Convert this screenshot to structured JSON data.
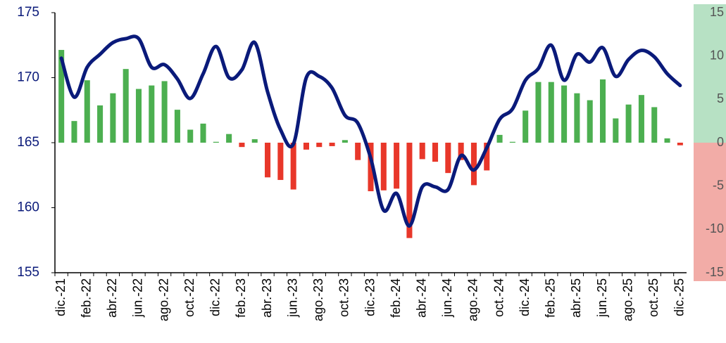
{
  "chart_data": {
    "type": "bar-line",
    "categories": [
      "dic.-21",
      null,
      "feb.-22",
      null,
      "abr.-22",
      null,
      "jun.-22",
      null,
      "ago.-22",
      null,
      "oct.-22",
      null,
      "dic.-22",
      null,
      "feb.-23",
      null,
      "abr.-23",
      null,
      "jun.-23",
      null,
      "ago.-23",
      null,
      "oct.-23",
      null,
      "dic.-23",
      null,
      "feb.-24",
      null,
      "abr.-24",
      null,
      "jun.-24",
      null,
      "ago.-24",
      null,
      "oct.-24",
      null,
      "dic.-24",
      null,
      "feb.-25",
      null,
      "abr.-25",
      null,
      "jun.-25",
      null,
      "ago.-25",
      null,
      "oct.-25",
      null,
      "dic.-25"
    ],
    "series": [
      {
        "type": "bar",
        "axis": "y2",
        "colors": {
          "positive": "#4caf50",
          "negative": "#e8372a"
        },
        "values": [
          10.7,
          2.5,
          7.2,
          4.3,
          5.7,
          8.5,
          6.2,
          6.6,
          7.1,
          3.8,
          1.5,
          2.2,
          0.1,
          1.0,
          -0.5,
          0.4,
          -4.0,
          -4.3,
          -5.4,
          -0.8,
          -0.5,
          -0.4,
          0.3,
          -2.0,
          -5.6,
          -5.5,
          -5.3,
          -11.0,
          -1.9,
          -2.2,
          -3.5,
          -2.0,
          -4.9,
          -3.2,
          0.9,
          0.1,
          3.7,
          7.0,
          7.0,
          6.6,
          5.7,
          4.9,
          7.3,
          2.8,
          4.4,
          5.5,
          4.1,
          0.5,
          -0.3
        ]
      },
      {
        "type": "line",
        "axis": "y",
        "color": "#0a1a7a",
        "values": [
          171.5,
          168.5,
          170.8,
          171.8,
          172.7,
          173.0,
          173.0,
          170.8,
          171.0,
          169.9,
          168.4,
          170.3,
          172.4,
          170.0,
          170.6,
          172.7,
          168.9,
          166.0,
          164.9,
          170.0,
          170.1,
          169.2,
          167.1,
          166.5,
          163.8,
          159.8,
          161.1,
          158.6,
          161.6,
          161.6,
          161.4,
          164.0,
          162.9,
          164.6,
          166.8,
          167.6,
          169.8,
          170.7,
          172.5,
          169.8,
          171.8,
          171.2,
          172.3,
          170.1,
          171.4,
          172.1,
          171.6,
          170.3,
          169.4
        ]
      }
    ],
    "ylim": [
      155,
      175
    ],
    "yticks": [
      155,
      160,
      165,
      170,
      175
    ],
    "ytick_color": "#0a1a7a",
    "y2lim": [
      -15,
      15
    ],
    "y2ticks": [
      -15,
      -10,
      -5,
      0,
      5,
      10,
      15
    ],
    "y2tick_color": "#555555",
    "y2_background": {
      "positive": "#b7e1c4",
      "negative": "#f2aca7"
    }
  }
}
